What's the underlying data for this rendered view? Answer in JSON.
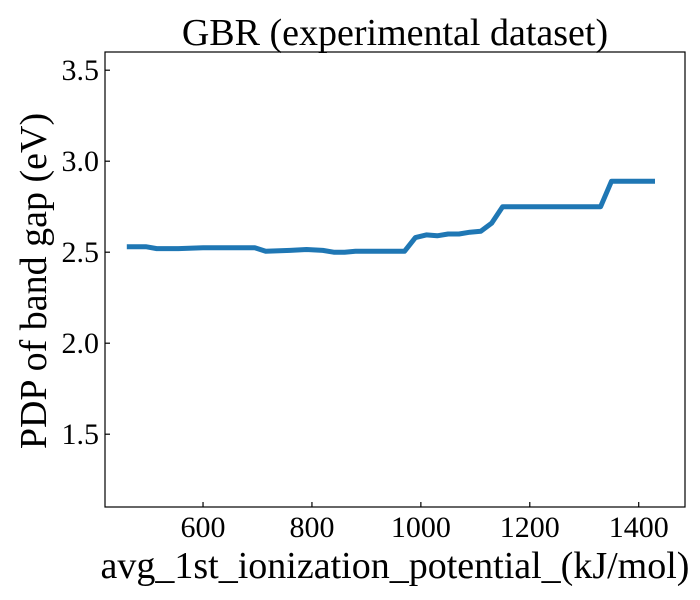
{
  "chart_data": {
    "type": "line",
    "title": "GBR (experimental dataset)",
    "xlabel": "avg_1st_ionization_potential_(kJ/mol)",
    "ylabel": "PDP of band gap (eV)",
    "xlim": [
      420,
      1485
    ],
    "ylim": [
      1.1,
      3.6
    ],
    "xticks": [
      600,
      800,
      1000,
      1200,
      1400
    ],
    "xtick_labels": [
      "600",
      "800",
      "1000",
      "1200",
      "1400"
    ],
    "yticks": [
      1.5,
      2.0,
      2.5,
      3.0,
      3.5
    ],
    "ytick_labels": [
      "1.5",
      "2.0",
      "2.5",
      "3.0",
      "3.5"
    ],
    "grid": false,
    "line_color": "#1f77b4",
    "series": [
      {
        "x": [
          460,
          495,
          515,
          555,
          600,
          660,
          695,
          715,
          760,
          790,
          820,
          840,
          860,
          880,
          920,
          970,
          990,
          1010,
          1030,
          1050,
          1070,
          1090,
          1110,
          1130,
          1150,
          1200,
          1260,
          1310,
          1330,
          1350,
          1380,
          1400,
          1430
        ],
        "y": [
          2.53,
          2.53,
          2.52,
          2.52,
          2.525,
          2.525,
          2.525,
          2.505,
          2.51,
          2.515,
          2.51,
          2.5,
          2.5,
          2.505,
          2.505,
          2.505,
          2.58,
          2.595,
          2.59,
          2.6,
          2.6,
          2.61,
          2.615,
          2.66,
          2.75,
          2.75,
          2.75,
          2.75,
          2.75,
          2.89,
          2.89,
          2.89,
          2.89
        ]
      }
    ]
  }
}
